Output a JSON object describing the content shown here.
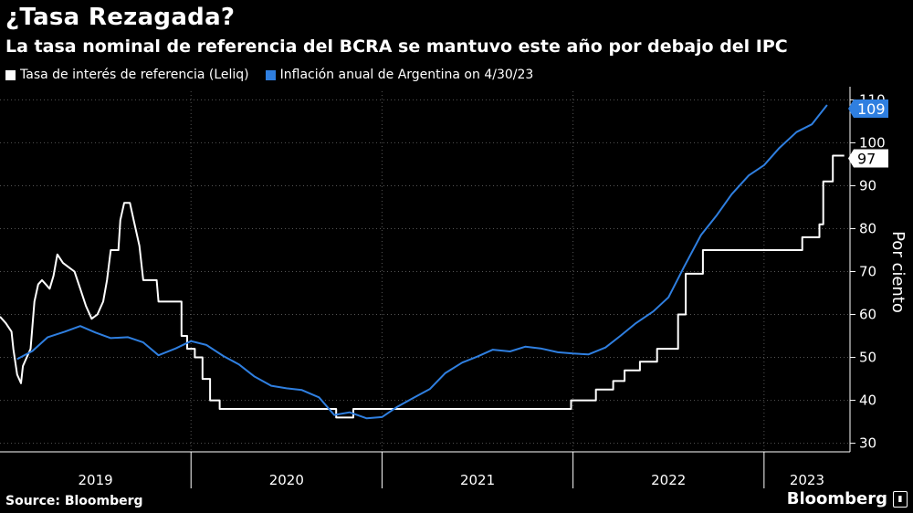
{
  "header": {
    "title": "¿Tasa Rezagada?",
    "subtitle": "La tasa nominal de referencia del BCRA se mantuvo este año por debajo del IPC"
  },
  "footer": {
    "source": "Source: Bloomberg",
    "brand": "Bloomberg"
  },
  "colors": {
    "background": "#000000",
    "leliq": "#ffffff",
    "inflation": "#2f7fe0"
  },
  "chart_data": {
    "type": "line",
    "title": "¿Tasa Rezagada?",
    "ylabel": "Por ciento",
    "ylim": [
      28,
      112
    ],
    "yticks": [
      30,
      40,
      50,
      60,
      70,
      80,
      90,
      100,
      110
    ],
    "xlim": [
      2019.0,
      2023.45
    ],
    "years": [
      "2019",
      "2020",
      "2021",
      "2022",
      "2023"
    ],
    "grid": true,
    "legend_position": "top-left",
    "series": [
      {
        "name": "Tasa de interés de referencia (Leliq)",
        "color": "#ffffff",
        "last_value": "97",
        "points": [
          [
            2019.0,
            59.5
          ],
          [
            2019.03,
            58
          ],
          [
            2019.06,
            56
          ],
          [
            2019.07,
            52
          ],
          [
            2019.09,
            46
          ],
          [
            2019.11,
            44
          ],
          [
            2019.12,
            48
          ],
          [
            2019.14,
            50
          ],
          [
            2019.16,
            52
          ],
          [
            2019.18,
            63
          ],
          [
            2019.2,
            67
          ],
          [
            2019.22,
            68
          ],
          [
            2019.24,
            67
          ],
          [
            2019.26,
            66
          ],
          [
            2019.28,
            69
          ],
          [
            2019.3,
            74
          ],
          [
            2019.33,
            72
          ],
          [
            2019.36,
            71
          ],
          [
            2019.39,
            70
          ],
          [
            2019.42,
            66
          ],
          [
            2019.45,
            62
          ],
          [
            2019.48,
            59
          ],
          [
            2019.51,
            60
          ],
          [
            2019.54,
            63
          ],
          [
            2019.56,
            68
          ],
          [
            2019.58,
            75
          ],
          [
            2019.62,
            75
          ],
          [
            2019.63,
            82
          ],
          [
            2019.65,
            86
          ],
          [
            2019.68,
            86
          ],
          [
            2019.7,
            82
          ],
          [
            2019.73,
            76
          ],
          [
            2019.75,
            68
          ],
          [
            2019.82,
            68
          ],
          [
            2019.83,
            63
          ],
          [
            2019.95,
            63
          ],
          [
            2019.95,
            55
          ],
          [
            2019.98,
            55
          ],
          [
            2019.98,
            52
          ],
          [
            2020.02,
            52
          ],
          [
            2020.02,
            50
          ],
          [
            2020.06,
            50
          ],
          [
            2020.06,
            45
          ],
          [
            2020.1,
            45
          ],
          [
            2020.1,
            40
          ],
          [
            2020.15,
            40
          ],
          [
            2020.15,
            38
          ],
          [
            2020.76,
            38
          ],
          [
            2020.76,
            36
          ],
          [
            2020.85,
            36
          ],
          [
            2020.85,
            38
          ],
          [
            2021.99,
            38
          ],
          [
            2021.99,
            40
          ],
          [
            2022.12,
            40
          ],
          [
            2022.12,
            42.5
          ],
          [
            2022.21,
            42.5
          ],
          [
            2022.21,
            44.5
          ],
          [
            2022.27,
            44.5
          ],
          [
            2022.27,
            47
          ],
          [
            2022.35,
            47
          ],
          [
            2022.35,
            49
          ],
          [
            2022.44,
            49
          ],
          [
            2022.44,
            52
          ],
          [
            2022.55,
            52
          ],
          [
            2022.55,
            60
          ],
          [
            2022.59,
            60
          ],
          [
            2022.59,
            69.5
          ],
          [
            2022.68,
            69.5
          ],
          [
            2022.68,
            75
          ],
          [
            2023.2,
            75
          ],
          [
            2023.2,
            78
          ],
          [
            2023.29,
            78
          ],
          [
            2023.29,
            81
          ],
          [
            2023.31,
            81
          ],
          [
            2023.31,
            91
          ],
          [
            2023.36,
            91
          ],
          [
            2023.36,
            97
          ],
          [
            2023.42,
            97
          ]
        ]
      },
      {
        "name": "Inflación anual de Argentina on 4/30/23",
        "color": "#2f7fe0",
        "last_value": "109",
        "points": [
          [
            2019.09,
            49.6
          ],
          [
            2019.17,
            51.5
          ],
          [
            2019.25,
            54.7
          ],
          [
            2019.34,
            56
          ],
          [
            2019.42,
            57.3
          ],
          [
            2019.5,
            55.8
          ],
          [
            2019.58,
            54.5
          ],
          [
            2019.67,
            54.7
          ],
          [
            2019.75,
            53.5
          ],
          [
            2019.83,
            50.5
          ],
          [
            2019.92,
            52.1
          ],
          [
            2020.0,
            53.8
          ],
          [
            2020.08,
            52.9
          ],
          [
            2020.17,
            50.3
          ],
          [
            2020.25,
            48.4
          ],
          [
            2020.33,
            45.6
          ],
          [
            2020.42,
            43.4
          ],
          [
            2020.5,
            42.8
          ],
          [
            2020.58,
            42.4
          ],
          [
            2020.67,
            40.7
          ],
          [
            2020.75,
            36.6
          ],
          [
            2020.83,
            37.2
          ],
          [
            2020.92,
            35.8
          ],
          [
            2021.0,
            36.1
          ],
          [
            2021.08,
            38.5
          ],
          [
            2021.17,
            40.7
          ],
          [
            2021.25,
            42.6
          ],
          [
            2021.33,
            46.3
          ],
          [
            2021.42,
            48.8
          ],
          [
            2021.5,
            50.2
          ],
          [
            2021.58,
            51.8
          ],
          [
            2021.67,
            51.4
          ],
          [
            2021.75,
            52.5
          ],
          [
            2021.83,
            52.1
          ],
          [
            2021.92,
            51.2
          ],
          [
            2022.0,
            50.9
          ],
          [
            2022.08,
            50.7
          ],
          [
            2022.17,
            52.3
          ],
          [
            2022.25,
            55.1
          ],
          [
            2022.33,
            58
          ],
          [
            2022.42,
            60.7
          ],
          [
            2022.5,
            64
          ],
          [
            2022.58,
            71
          ],
          [
            2022.67,
            78.5
          ],
          [
            2022.75,
            83
          ],
          [
            2022.83,
            88
          ],
          [
            2022.92,
            92.4
          ],
          [
            2023.0,
            94.8
          ],
          [
            2023.08,
            98.8
          ],
          [
            2023.17,
            102.5
          ],
          [
            2023.25,
            104.3
          ],
          [
            2023.33,
            108.8
          ]
        ]
      }
    ]
  }
}
